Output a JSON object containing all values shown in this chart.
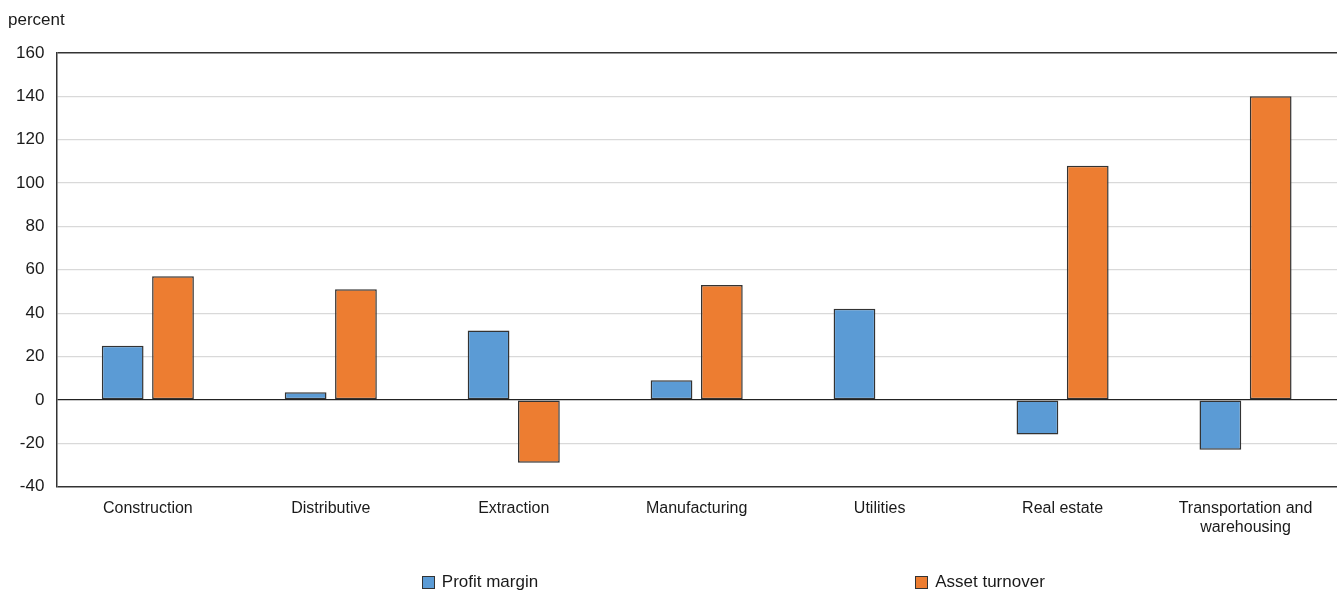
{
  "chart_data": {
    "type": "bar",
    "ylabel": "percent",
    "categories": [
      "Construction",
      "Distributive",
      "Extraction",
      "Manufacturing",
      "Utilities",
      "Real estate",
      "Transportation and warehousing"
    ],
    "series": [
      {
        "name": "Profit margin",
        "color": "#5b9bd5",
        "values": [
          25,
          3.5,
          32,
          9,
          42,
          -16,
          -23
        ]
      },
      {
        "name": "Asset turnover",
        "color": "#ed7d31",
        "values": [
          57,
          51,
          -29,
          53,
          null,
          108,
          140
        ]
      }
    ],
    "ylim": [
      -40,
      160
    ],
    "yticks": [
      -40,
      -20,
      0,
      20,
      40,
      60,
      80,
      100,
      120,
      140,
      160
    ],
    "grid": "y",
    "legend": "bottom"
  }
}
